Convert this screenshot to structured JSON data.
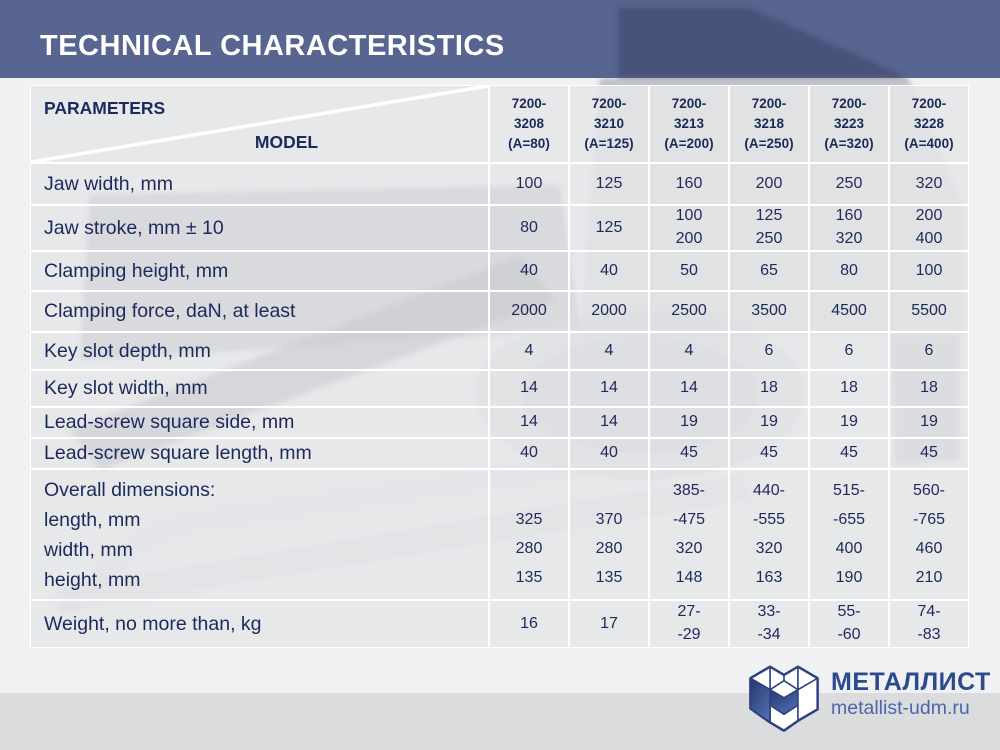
{
  "title": "TECHNICAL CHARACTERISTICS",
  "table": {
    "corner": {
      "parameters": "PARAMETERS",
      "model": "MODEL"
    },
    "models": [
      "7200-\n3208\n(A=80)",
      "7200-\n3210\n(A=125)",
      "7200-\n3213\n(A=200)",
      "7200-\n3218\n(A=250)",
      "7200-\n3223\n(A=320)",
      "7200-\n3228\n(A=400)"
    ],
    "rows": [
      {
        "label": "Jaw width, mm",
        "values": [
          "100",
          "125",
          "160",
          "200",
          "250",
          "320"
        ]
      },
      {
        "label": "Jaw stroke, mm ± 10",
        "values": [
          "80",
          "125",
          "100\n200",
          "125\n250",
          "160\n320",
          "200\n400"
        ]
      },
      {
        "label": "Clamping height, mm",
        "values": [
          "40",
          "40",
          "50",
          "65",
          "80",
          "100"
        ]
      },
      {
        "label": "Clamping force, daN, at least",
        "values": [
          "2000",
          "2000",
          "2500",
          "3500",
          "4500",
          "5500"
        ]
      },
      {
        "label": "Key slot depth, mm",
        "values": [
          "4",
          "4",
          "4",
          "6",
          "6",
          "6"
        ]
      },
      {
        "label": "Key slot width, mm",
        "values": [
          "14",
          "14",
          "14",
          "18",
          "18",
          "18"
        ]
      },
      {
        "label": "Lead-screw square side, mm",
        "values": [
          "14",
          "14",
          "19",
          "19",
          "19",
          "19"
        ]
      },
      {
        "label": "Lead-screw square length, mm",
        "values": [
          "40",
          "40",
          "45",
          "45",
          "45",
          "45"
        ]
      },
      {
        "label": "Overall dimensions:\nlength, mm\nwidth, mm\nheight, mm",
        "align": "bottom",
        "values": [
          "325\n280\n135",
          "370\n280\n135",
          "385-\n-475\n320\n148",
          "440-\n-555\n320\n163",
          "515-\n-655\n400\n190",
          "560-\n-765\n460\n210"
        ]
      },
      {
        "label": "Weight, no more than, kg",
        "values": [
          "16",
          "17",
          "27-\n-29",
          "33-\n-34",
          "55-\n-60",
          "74-\n-83"
        ]
      }
    ]
  },
  "footer": {
    "brand": "МЕТАЛЛИСТ",
    "site": "metallist-udm.ru"
  },
  "colors": {
    "header_band": "#586590",
    "navy_text": "#1b2a5c",
    "cell_gray": "#e4e5e7",
    "bottom_band": "#dbdcde",
    "brand_navy": "#2c4a8e",
    "brand_blue": "#4a68a8"
  }
}
